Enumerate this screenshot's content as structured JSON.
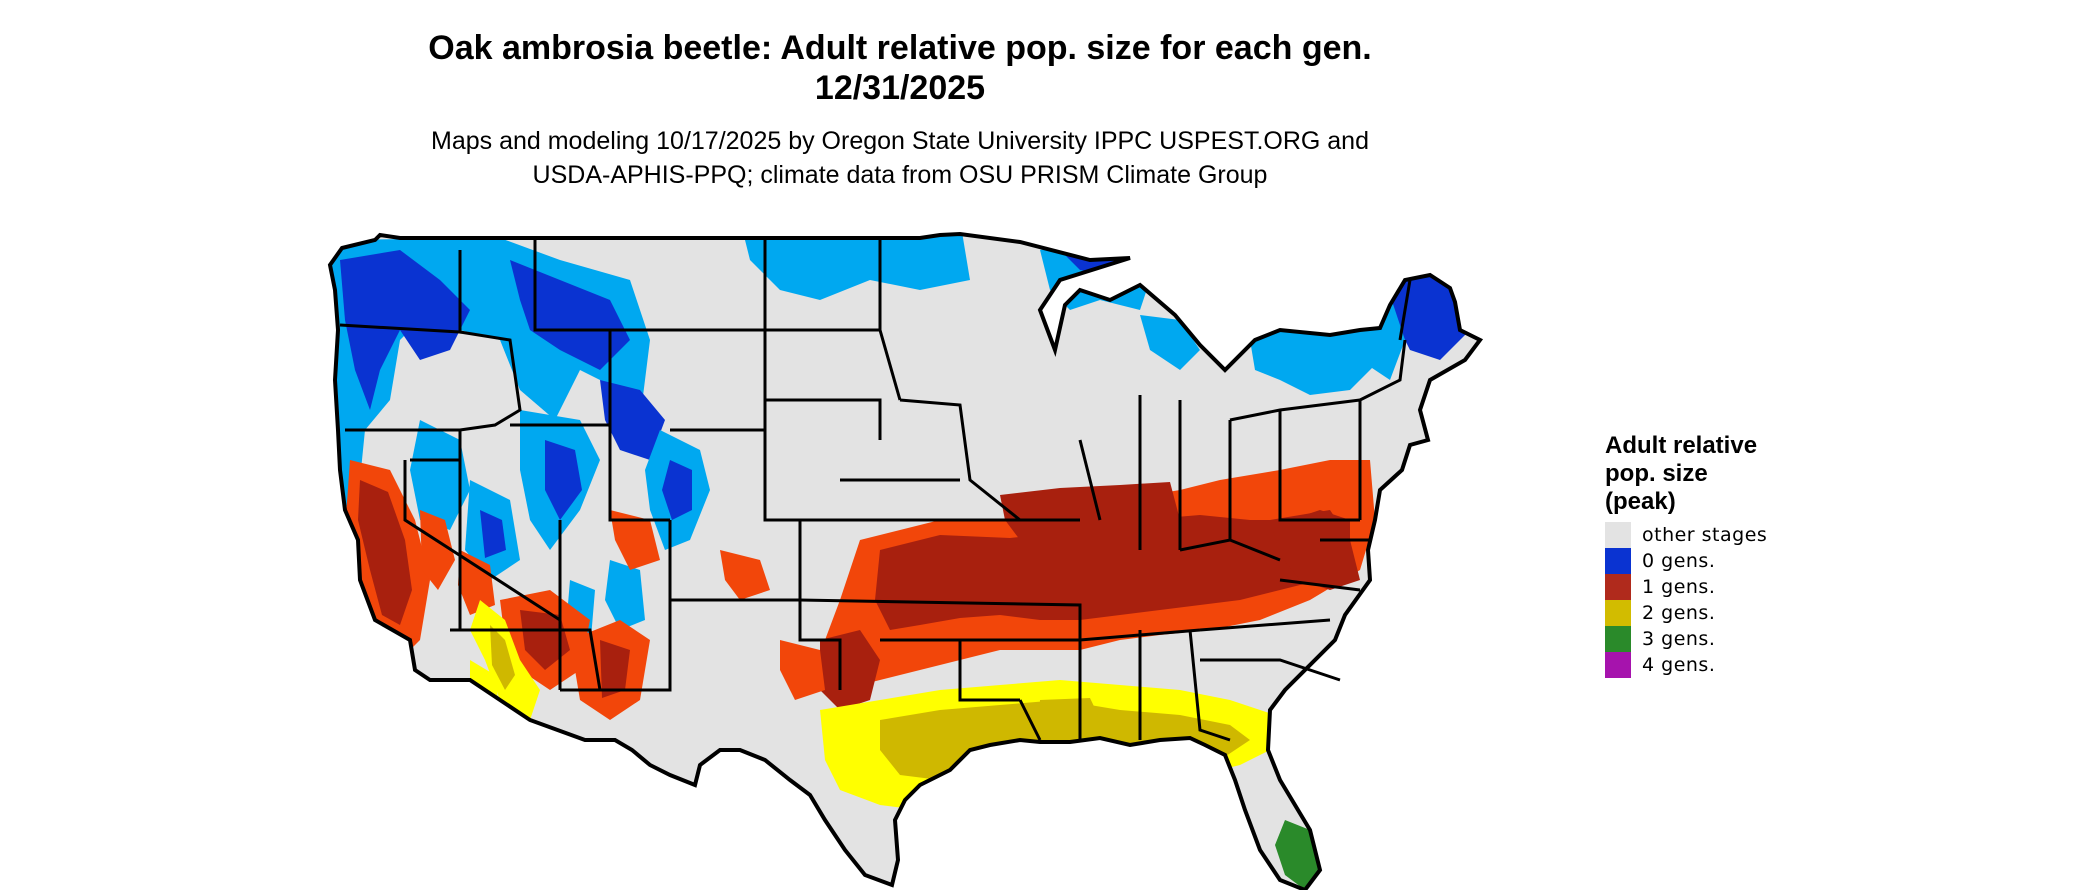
{
  "title": {
    "line1": "Oak ambrosia beetle: Adult relative pop. size for each gen.",
    "line2": "12/31/2025"
  },
  "subtitle": {
    "line1": "Maps and modeling 10/17/2025 by Oregon State University IPPC USPEST.ORG and",
    "line2": "USDA-APHIS-PPQ; climate data from OSU PRISM Climate Group"
  },
  "legend": {
    "title_lines": [
      "Adult relative",
      "pop. size",
      "(peak)"
    ],
    "items": [
      {
        "label": "other stages",
        "color": "#e3e3e3"
      },
      {
        "label": "0 gens.",
        "color": "#0a33d1"
      },
      {
        "label": "1 gens.",
        "color": "#b02a1c"
      },
      {
        "label": "2 gens.",
        "color": "#d2bc00"
      },
      {
        "label": "3 gens.",
        "color": "#2a8a2a"
      },
      {
        "label": "4 gens.",
        "color": "#a613ad"
      }
    ]
  },
  "map_colors": {
    "background": "#e3e3e3",
    "gen0_dark": "#0a33d1",
    "gen0_light": "#00a8f0",
    "gen1_dark": "#a8200e",
    "gen1_light": "#f2460a",
    "gen2_dark": "#cfb800",
    "gen2_light": "#ffff00",
    "gen3": "#2a8a2a",
    "borders": "#000000"
  }
}
